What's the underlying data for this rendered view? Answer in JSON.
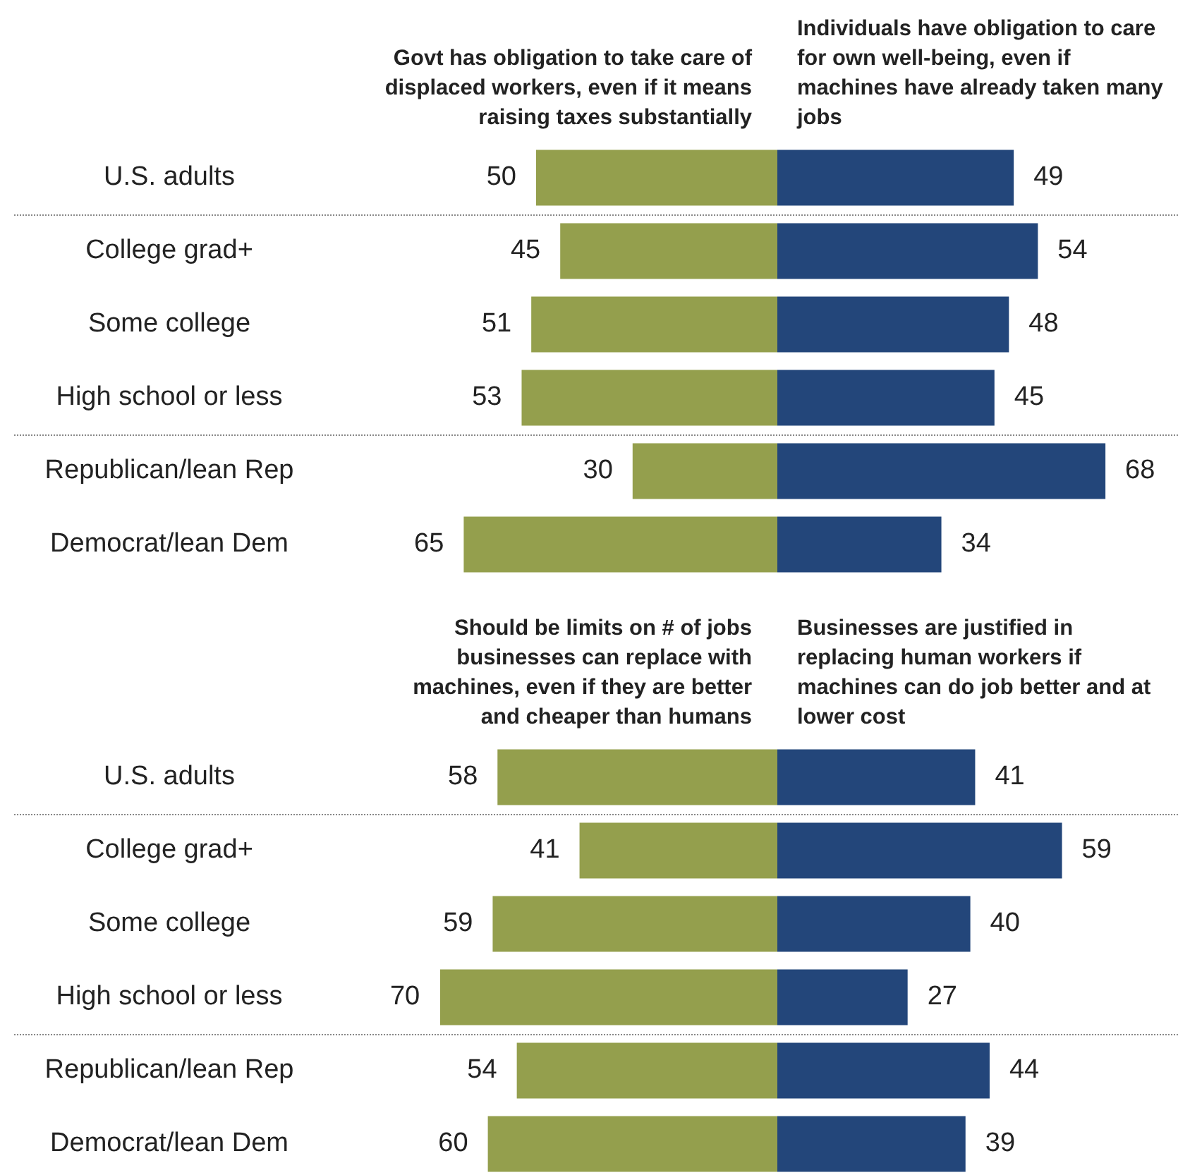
{
  "chart_data": [
    {
      "type": "bar",
      "orientation": "horizontal",
      "title": "Govt has obligation to take care of displaced workers, even if it means raising taxes substantially",
      "categories": [
        "U.S. adults",
        "College grad+",
        "Some college",
        "High school or less",
        "Republican/lean Rep",
        "Democrat/lean Dem"
      ],
      "values": [
        50,
        45,
        51,
        53,
        30,
        65
      ],
      "color": "#949f4d",
      "data_labels": true,
      "tick_labels": "y"
    },
    {
      "type": "bar",
      "orientation": "horizontal",
      "title": "Individuals have obligation to care for own well-being, even if machines have already taken many jobs",
      "values": [
        49,
        54,
        48,
        45,
        68,
        34
      ],
      "color": "#23467a",
      "data_labels": true,
      "tick_labels": false
    },
    {
      "type": "bar",
      "orientation": "horizontal",
      "title": "Should be limits on # of jobs businesses can replace with machines, even if they are better and cheaper than humans",
      "categories": [
        "U.S. adults",
        "College grad+",
        "Some college",
        "High school or less",
        "Republican/lean Rep",
        "Democrat/lean Dem"
      ],
      "values": [
        58,
        41,
        59,
        70,
        54,
        60
      ],
      "color": "#949f4d",
      "data_labels": true,
      "tick_labels": "y"
    },
    {
      "type": "bar",
      "orientation": "horizontal",
      "title": "Businesses are justified in replacing human workers if machines can do job better and at lower cost",
      "values": [
        41,
        59,
        40,
        27,
        44,
        39
      ],
      "color": "#23467a",
      "data_labels": true,
      "tick_labels": false
    }
  ]
}
